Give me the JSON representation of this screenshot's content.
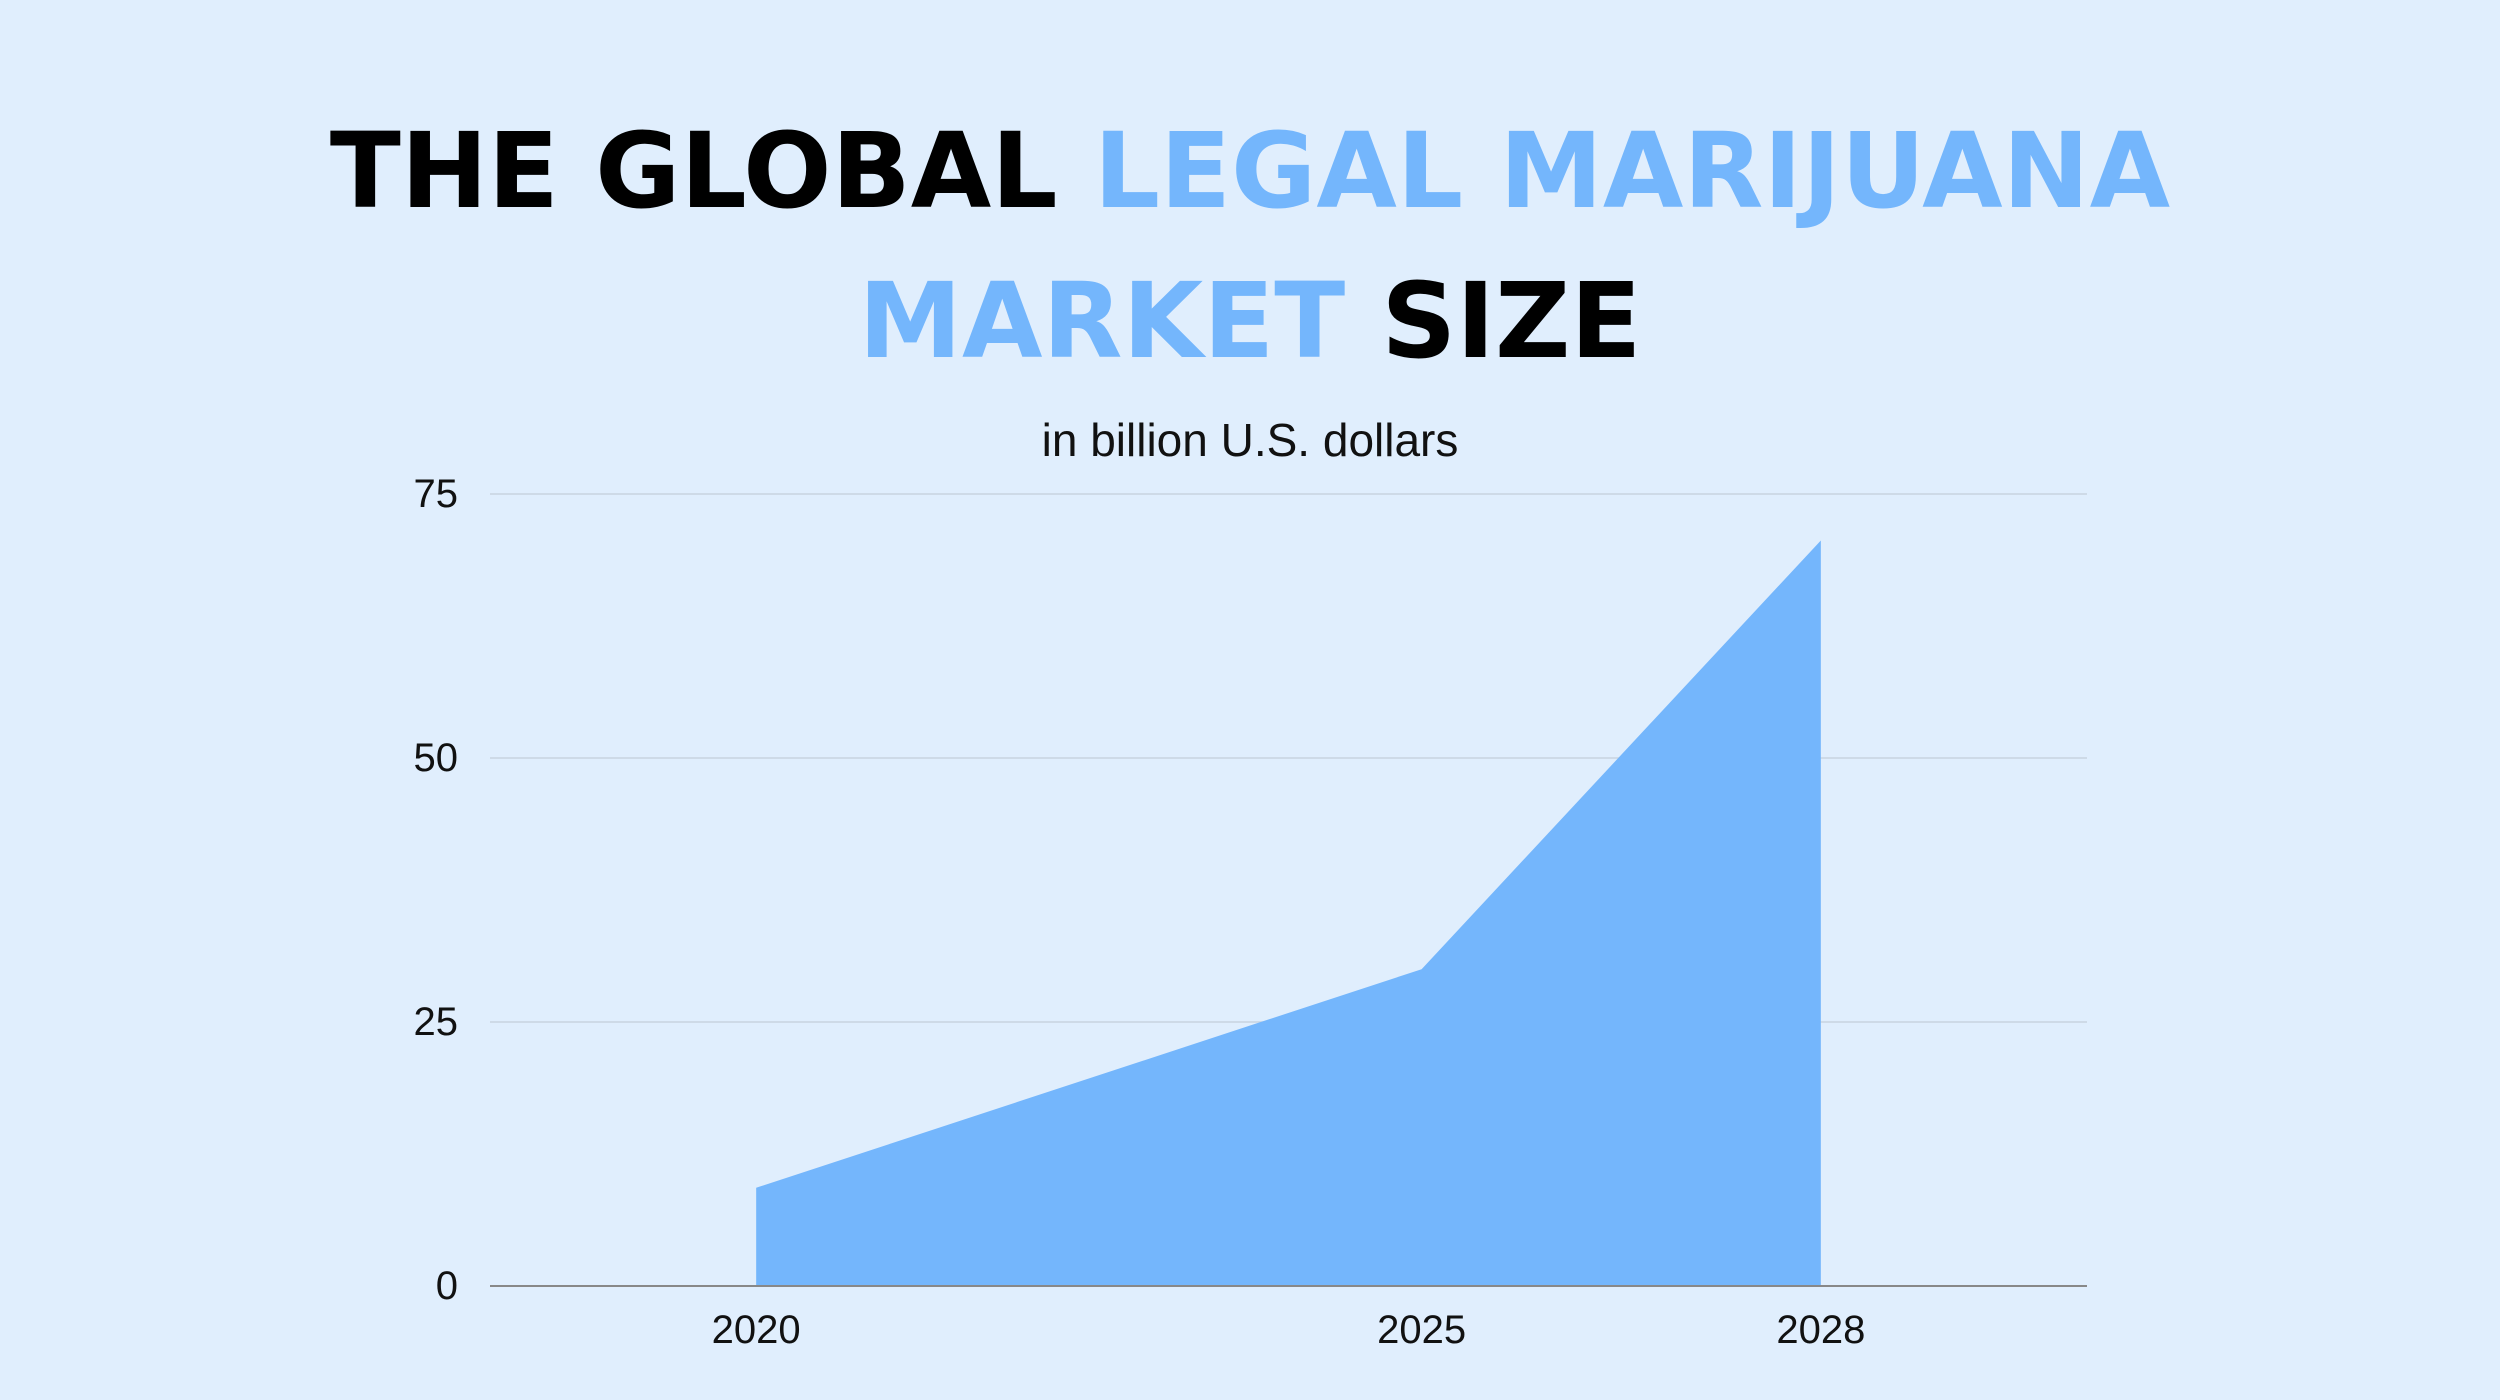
{
  "title": {
    "line1": [
      {
        "text": "THE GLOBAL ",
        "color": "#000000"
      },
      {
        "text": "LEGAL MARIJUANA",
        "color": "#74b6fc"
      }
    ],
    "line2": [
      {
        "text": "MARKET",
        "color": "#74b6fc"
      },
      {
        "text": " SIZE",
        "color": "#000000"
      }
    ]
  },
  "subtitle": "in billion U.S. dollars",
  "colors": {
    "background": "#e0eefd",
    "accent": "#74b6fc",
    "area": "#74b6fc",
    "grid": "#c8d3e0",
    "axis": "#888888",
    "text": "#111111"
  },
  "chart_data": {
    "type": "area",
    "title": "THE GLOBAL LEGAL MARIJUANA MARKET SIZE",
    "subtitle": "in billion U.S. dollars",
    "categories": [
      "2020",
      "2025",
      "2028"
    ],
    "x_domain": [
      2018,
      2030
    ],
    "values": [
      9.3,
      30,
      70.6
    ],
    "ylim": [
      0,
      75
    ],
    "yticks": [
      0,
      25,
      50,
      75
    ],
    "xlabel": "",
    "ylabel": "",
    "grid": true,
    "legend": "none"
  }
}
